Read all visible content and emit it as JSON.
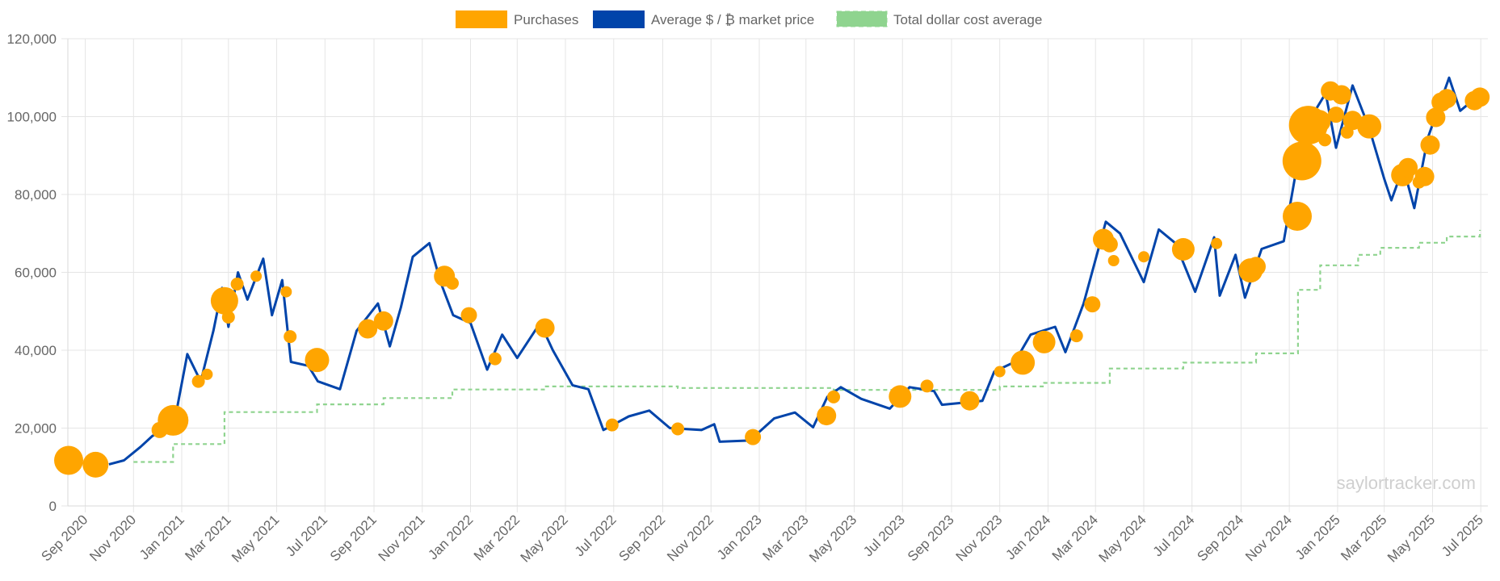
{
  "colors": {
    "purchases": "#FFA500",
    "market_price": "#0044AA",
    "dollar_cost_average": "#8FD48F",
    "grid": "#E5E5E5",
    "tick_text": "#666666",
    "watermark": "#CFCFCF"
  },
  "watermark": "saylortracker.com",
  "chart_data": {
    "type": "line",
    "x_axis": {
      "type": "date",
      "range": [
        "2020-08-10",
        "2025-07-10"
      ],
      "tick_labels": [
        {
          "date": "2020-09-01",
          "label": "Sep 2020"
        },
        {
          "date": "2020-11-01",
          "label": "Nov 2020"
        },
        {
          "date": "2021-01-01",
          "label": "Jan 2021"
        },
        {
          "date": "2021-03-01",
          "label": "Mar 2021"
        },
        {
          "date": "2021-05-01",
          "label": "May 2021"
        },
        {
          "date": "2021-07-01",
          "label": "Jul 2021"
        },
        {
          "date": "2021-09-01",
          "label": "Sep 2021"
        },
        {
          "date": "2021-11-01",
          "label": "Nov 2021"
        },
        {
          "date": "2022-01-01",
          "label": "Jan 2022"
        },
        {
          "date": "2022-03-01",
          "label": "Mar 2022"
        },
        {
          "date": "2022-05-01",
          "label": "May 2022"
        },
        {
          "date": "2022-07-01",
          "label": "Jul 2022"
        },
        {
          "date": "2022-09-01",
          "label": "Sep 2022"
        },
        {
          "date": "2022-11-01",
          "label": "Nov 2022"
        },
        {
          "date": "2023-01-01",
          "label": "Jan 2023"
        },
        {
          "date": "2023-03-01",
          "label": "Mar 2023"
        },
        {
          "date": "2023-05-01",
          "label": "May 2023"
        },
        {
          "date": "2023-07-01",
          "label": "Jul 2023"
        },
        {
          "date": "2023-09-01",
          "label": "Sep 2023"
        },
        {
          "date": "2023-11-01",
          "label": "Nov 2023"
        },
        {
          "date": "2024-01-01",
          "label": "Jan 2024"
        },
        {
          "date": "2024-03-01",
          "label": "Mar 2024"
        },
        {
          "date": "2024-05-01",
          "label": "May 2024"
        },
        {
          "date": "2024-07-01",
          "label": "Jul 2024"
        },
        {
          "date": "2024-09-01",
          "label": "Sep 2024"
        },
        {
          "date": "2024-11-01",
          "label": "Nov 2024"
        },
        {
          "date": "2025-01-01",
          "label": "Jan 2025"
        },
        {
          "date": "2025-03-01",
          "label": "Mar 2025"
        },
        {
          "date": "2025-05-01",
          "label": "May 2025"
        },
        {
          "date": "2025-07-01",
          "label": "Jul 2025"
        }
      ]
    },
    "y_axis": {
      "range": [
        0,
        120000
      ],
      "ticks": [
        0,
        20000,
        40000,
        60000,
        80000,
        100000,
        120000
      ],
      "tick_labels": [
        "0",
        "20,000",
        "40,000",
        "60,000",
        "80,000",
        "100,000",
        "120,000"
      ]
    },
    "grid": true,
    "legend": {
      "placement": "top-center",
      "entries": [
        {
          "label": "Purchases",
          "color": "#FFA500",
          "style": "bubble"
        },
        {
          "label": "Average $ / ₿ market price",
          "color": "#0044AA",
          "style": "solid"
        },
        {
          "label": "Total dollar cost average",
          "color": "#8FD48F",
          "style": "dashed"
        }
      ]
    },
    "series": [
      {
        "name": "Average $ / ₿ market price",
        "type": "line",
        "points": [
          [
            "2020-10-01",
            10700
          ],
          [
            "2020-10-20",
            11700
          ],
          [
            "2020-11-10",
            15200
          ],
          [
            "2020-11-25",
            18000
          ],
          [
            "2020-12-15",
            20000
          ],
          [
            "2020-12-25",
            24000
          ],
          [
            "2021-01-08",
            39000
          ],
          [
            "2021-01-25",
            32000
          ],
          [
            "2021-02-10",
            45000
          ],
          [
            "2021-02-21",
            56000
          ],
          [
            "2021-03-01",
            46000
          ],
          [
            "2021-03-13",
            60000
          ],
          [
            "2021-03-25",
            53000
          ],
          [
            "2021-04-14",
            63500
          ],
          [
            "2021-04-25",
            49000
          ],
          [
            "2021-05-08",
            58000
          ],
          [
            "2021-05-19",
            37000
          ],
          [
            "2021-06-10",
            36000
          ],
          [
            "2021-06-22",
            32000
          ],
          [
            "2021-07-20",
            30000
          ],
          [
            "2021-08-10",
            45000
          ],
          [
            "2021-09-06",
            52000
          ],
          [
            "2021-09-21",
            41000
          ],
          [
            "2021-10-05",
            51000
          ],
          [
            "2021-10-20",
            64000
          ],
          [
            "2021-11-10",
            67500
          ],
          [
            "2021-11-25",
            57000
          ],
          [
            "2021-12-10",
            49000
          ],
          [
            "2022-01-01",
            47000
          ],
          [
            "2022-01-22",
            35000
          ],
          [
            "2022-02-10",
            44000
          ],
          [
            "2022-03-01",
            38000
          ],
          [
            "2022-03-30",
            47000
          ],
          [
            "2022-04-15",
            40000
          ],
          [
            "2022-05-10",
            31000
          ],
          [
            "2022-05-30",
            30000
          ],
          [
            "2022-06-18",
            19500
          ],
          [
            "2022-07-20",
            23000
          ],
          [
            "2022-08-15",
            24500
          ],
          [
            "2022-09-10",
            20000
          ],
          [
            "2022-10-20",
            19500
          ],
          [
            "2022-11-05",
            21000
          ],
          [
            "2022-11-12",
            16500
          ],
          [
            "2022-12-20",
            16800
          ],
          [
            "2023-01-20",
            22500
          ],
          [
            "2023-02-15",
            24000
          ],
          [
            "2023-03-10",
            20200
          ],
          [
            "2023-03-28",
            28000
          ],
          [
            "2023-04-14",
            30500
          ],
          [
            "2023-05-10",
            27500
          ],
          [
            "2023-06-15",
            25000
          ],
          [
            "2023-07-10",
            30500
          ],
          [
            "2023-08-10",
            29500
          ],
          [
            "2023-08-20",
            26000
          ],
          [
            "2023-09-15",
            26500
          ],
          [
            "2023-10-10",
            27000
          ],
          [
            "2023-10-25",
            34500
          ],
          [
            "2023-11-20",
            37000
          ],
          [
            "2023-12-10",
            44000
          ],
          [
            "2024-01-10",
            46000
          ],
          [
            "2024-01-23",
            39500
          ],
          [
            "2024-02-15",
            52000
          ],
          [
            "2024-03-14",
            73000
          ],
          [
            "2024-04-01",
            70000
          ],
          [
            "2024-05-01",
            57500
          ],
          [
            "2024-05-20",
            71000
          ],
          [
            "2024-06-10",
            67500
          ],
          [
            "2024-07-05",
            55000
          ],
          [
            "2024-07-29",
            69000
          ],
          [
            "2024-08-05",
            54000
          ],
          [
            "2024-08-25",
            64500
          ],
          [
            "2024-09-06",
            53500
          ],
          [
            "2024-09-27",
            66000
          ],
          [
            "2024-10-25",
            68000
          ],
          [
            "2024-11-13",
            90000
          ],
          [
            "2024-12-05",
            102000
          ],
          [
            "2024-12-17",
            106000
          ],
          [
            "2024-12-30",
            92000
          ],
          [
            "2025-01-20",
            108000
          ],
          [
            "2025-02-10",
            97000
          ],
          [
            "2025-03-01",
            84000
          ],
          [
            "2025-03-10",
            78500
          ],
          [
            "2025-03-25",
            87000
          ],
          [
            "2025-04-08",
            76500
          ],
          [
            "2025-04-25",
            94500
          ],
          [
            "2025-05-22",
            110000
          ],
          [
            "2025-06-05",
            101500
          ],
          [
            "2025-06-20",
            104000
          ],
          [
            "2025-06-30",
            107000
          ]
        ]
      },
      {
        "name": "Total dollar cost average",
        "type": "step",
        "points": [
          [
            "2020-11-01",
            11300
          ],
          [
            "2020-12-21",
            15900
          ],
          [
            "2021-02-24",
            24100
          ],
          [
            "2021-06-21",
            26100
          ],
          [
            "2021-09-13",
            27700
          ],
          [
            "2021-12-09",
            29900
          ],
          [
            "2022-04-05",
            30700
          ],
          [
            "2022-09-20",
            30300
          ],
          [
            "2023-04-05",
            29800
          ],
          [
            "2023-11-01",
            30700
          ],
          [
            "2023-12-27",
            31600
          ],
          [
            "2024-03-19",
            35300
          ],
          [
            "2024-06-20",
            36800
          ],
          [
            "2024-09-20",
            39200
          ],
          [
            "2024-11-12",
            55500
          ],
          [
            "2024-12-10",
            61800
          ],
          [
            "2025-01-27",
            64500
          ],
          [
            "2025-02-24",
            66300
          ],
          [
            "2025-04-14",
            67600
          ],
          [
            "2025-05-19",
            69200
          ],
          [
            "2025-06-30",
            70900
          ]
        ]
      },
      {
        "name": "Purchases",
        "type": "bubble",
        "points": [
          {
            "x": "2020-08-11",
            "y": 11700,
            "r": 18
          },
          {
            "x": "2020-09-14",
            "y": 10600,
            "r": 16
          },
          {
            "x": "2020-12-04",
            "y": 19500,
            "r": 10
          },
          {
            "x": "2020-12-21",
            "y": 22000,
            "r": 19
          },
          {
            "x": "2021-01-22",
            "y": 32000,
            "r": 8
          },
          {
            "x": "2021-02-02",
            "y": 33800,
            "r": 7
          },
          {
            "x": "2021-02-24",
            "y": 52700,
            "r": 17
          },
          {
            "x": "2021-03-01",
            "y": 48500,
            "r": 8
          },
          {
            "x": "2021-03-12",
            "y": 57000,
            "r": 8
          },
          {
            "x": "2021-04-05",
            "y": 59000,
            "r": 7
          },
          {
            "x": "2021-05-13",
            "y": 55000,
            "r": 7
          },
          {
            "x": "2021-05-18",
            "y": 43500,
            "r": 8
          },
          {
            "x": "2021-06-21",
            "y": 37500,
            "r": 15
          },
          {
            "x": "2021-08-24",
            "y": 45500,
            "r": 12
          },
          {
            "x": "2021-09-13",
            "y": 47500,
            "r": 12
          },
          {
            "x": "2021-11-29",
            "y": 59000,
            "r": 13
          },
          {
            "x": "2021-12-09",
            "y": 57200,
            "r": 8
          },
          {
            "x": "2021-12-30",
            "y": 49000,
            "r": 10
          },
          {
            "x": "2022-02-01",
            "y": 37800,
            "r": 8
          },
          {
            "x": "2022-04-05",
            "y": 45700,
            "r": 12
          },
          {
            "x": "2022-06-29",
            "y": 20800,
            "r": 8
          },
          {
            "x": "2022-09-20",
            "y": 19800,
            "r": 8
          },
          {
            "x": "2022-12-24",
            "y": 17700,
            "r": 10
          },
          {
            "x": "2023-03-27",
            "y": 23200,
            "r": 12
          },
          {
            "x": "2023-04-05",
            "y": 28000,
            "r": 8
          },
          {
            "x": "2023-06-28",
            "y": 28100,
            "r": 14
          },
          {
            "x": "2023-08-01",
            "y": 30800,
            "r": 8
          },
          {
            "x": "2023-09-24",
            "y": 27000,
            "r": 12
          },
          {
            "x": "2023-11-01",
            "y": 34500,
            "r": 7
          },
          {
            "x": "2023-11-30",
            "y": 36800,
            "r": 15
          },
          {
            "x": "2023-12-27",
            "y": 42100,
            "r": 14
          },
          {
            "x": "2024-02-06",
            "y": 43700,
            "r": 8
          },
          {
            "x": "2024-02-26",
            "y": 51800,
            "r": 10
          },
          {
            "x": "2024-03-11",
            "y": 68500,
            "r": 13
          },
          {
            "x": "2024-03-19",
            "y": 67200,
            "r": 10
          },
          {
            "x": "2024-03-24",
            "y": 63000,
            "r": 7
          },
          {
            "x": "2024-05-01",
            "y": 64000,
            "r": 7
          },
          {
            "x": "2024-06-20",
            "y": 65900,
            "r": 14
          },
          {
            "x": "2024-08-01",
            "y": 67400,
            "r": 7
          },
          {
            "x": "2024-09-13",
            "y": 60500,
            "r": 15
          },
          {
            "x": "2024-09-20",
            "y": 61500,
            "r": 12
          },
          {
            "x": "2024-11-11",
            "y": 74400,
            "r": 18
          },
          {
            "x": "2024-11-17",
            "y": 88600,
            "r": 24
          },
          {
            "x": "2024-11-25",
            "y": 97800,
            "r": 24
          },
          {
            "x": "2024-12-09",
            "y": 98800,
            "r": 14
          },
          {
            "x": "2024-12-16",
            "y": 94000,
            "r": 8
          },
          {
            "x": "2024-12-23",
            "y": 106600,
            "r": 12
          },
          {
            "x": "2024-12-30",
            "y": 100500,
            "r": 10
          },
          {
            "x": "2025-01-06",
            "y": 105600,
            "r": 12
          },
          {
            "x": "2025-01-13",
            "y": 96000,
            "r": 8
          },
          {
            "x": "2025-01-20",
            "y": 99000,
            "r": 12
          },
          {
            "x": "2025-02-10",
            "y": 97500,
            "r": 15
          },
          {
            "x": "2025-03-24",
            "y": 85000,
            "r": 14
          },
          {
            "x": "2025-03-31",
            "y": 86900,
            "r": 12
          },
          {
            "x": "2025-04-14",
            "y": 83200,
            "r": 8
          },
          {
            "x": "2025-04-21",
            "y": 84600,
            "r": 12
          },
          {
            "x": "2025-04-28",
            "y": 92700,
            "r": 12
          },
          {
            "x": "2025-05-05",
            "y": 99800,
            "r": 12
          },
          {
            "x": "2025-05-12",
            "y": 103700,
            "r": 12
          },
          {
            "x": "2025-05-19",
            "y": 104600,
            "r": 12
          },
          {
            "x": "2025-06-23",
            "y": 104100,
            "r": 12
          },
          {
            "x": "2025-06-30",
            "y": 105000,
            "r": 12
          }
        ]
      }
    ]
  }
}
